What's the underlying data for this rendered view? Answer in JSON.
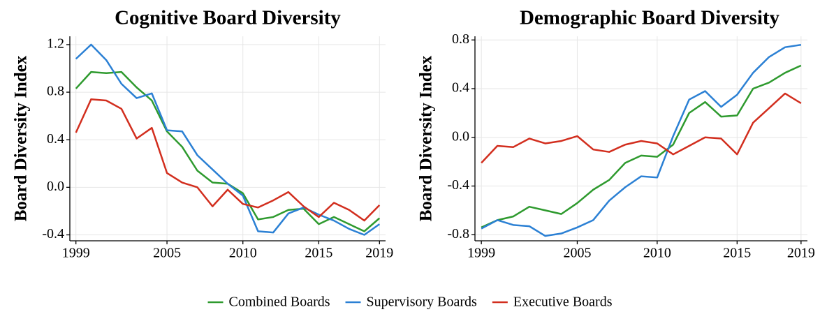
{
  "chart_data": [
    {
      "type": "line",
      "title": "Cognitive Board Diversity",
      "ylabel": "Board Diversity Index",
      "x": [
        1999,
        2000,
        2001,
        2002,
        2003,
        2004,
        2005,
        2006,
        2007,
        2008,
        2009,
        2010,
        2011,
        2012,
        2013,
        2014,
        2015,
        2016,
        2017,
        2018,
        2019
      ],
      "series": [
        {
          "name": "Combined Boards",
          "color": "#2e9a2e",
          "values": [
            0.83,
            0.97,
            0.96,
            0.97,
            0.84,
            0.73,
            0.47,
            0.34,
            0.14,
            0.04,
            0.03,
            -0.05,
            -0.27,
            -0.25,
            -0.19,
            -0.18,
            -0.31,
            -0.25,
            -0.31,
            -0.37,
            -0.26
          ]
        },
        {
          "name": "Supervisory Boards",
          "color": "#2b80d4",
          "values": [
            1.08,
            1.2,
            1.07,
            0.87,
            0.75,
            0.79,
            0.48,
            0.47,
            0.27,
            0.15,
            0.03,
            -0.07,
            -0.37,
            -0.38,
            -0.22,
            -0.17,
            -0.23,
            -0.28,
            -0.35,
            -0.4,
            -0.31
          ]
        },
        {
          "name": "Executive Boards",
          "color": "#d22e1e",
          "values": [
            0.46,
            0.74,
            0.73,
            0.66,
            0.41,
            0.5,
            0.12,
            0.04,
            0.0,
            -0.16,
            -0.02,
            -0.14,
            -0.17,
            -0.11,
            -0.04,
            -0.16,
            -0.25,
            -0.13,
            -0.19,
            -0.28,
            -0.15
          ]
        }
      ],
      "xlim": [
        1998.6,
        2019.4
      ],
      "xticks": [
        1999,
        2005,
        2010,
        2015,
        2019
      ],
      "ylim": [
        -0.45,
        1.27
      ],
      "yticks": [
        -0.4,
        {
          "value": 0,
          "label": "0.0"
        },
        0.4,
        0.8,
        1.2
      ],
      "grid": true
    },
    {
      "type": "line",
      "title": "Demographic Board Diversity",
      "ylabel": "Board Diversity Index",
      "x": [
        1999,
        2000,
        2001,
        2002,
        2003,
        2004,
        2005,
        2006,
        2007,
        2008,
        2009,
        2010,
        2011,
        2012,
        2013,
        2014,
        2015,
        2016,
        2017,
        2018,
        2019
      ],
      "series": [
        {
          "color": "#2e9a2e",
          "values": [
            -0.74,
            -0.68,
            -0.65,
            -0.57,
            -0.6,
            -0.63,
            -0.54,
            -0.43,
            -0.35,
            -0.21,
            -0.15,
            -0.16,
            -0.06,
            0.2,
            0.29,
            0.17,
            0.18,
            0.4,
            0.45,
            0.53,
            0.59
          ]
        },
        {
          "color": "#2b80d4",
          "values": [
            -0.75,
            -0.68,
            -0.72,
            -0.73,
            -0.81,
            -0.79,
            -0.74,
            -0.68,
            -0.52,
            -0.41,
            -0.32,
            -0.33,
            0.01,
            0.31,
            0.38,
            0.25,
            0.35,
            0.53,
            0.66,
            0.74,
            0.76
          ]
        },
        {
          "color": "#d22e1e",
          "values": [
            -0.21,
            -0.07,
            -0.08,
            -0.01,
            -0.05,
            -0.03,
            0.01,
            -0.1,
            -0.12,
            -0.06,
            -0.03,
            -0.05,
            -0.14,
            -0.07,
            0.0,
            -0.01,
            -0.14,
            0.12,
            0.24,
            0.36,
            0.28
          ]
        }
      ],
      "xlim": [
        1998.6,
        2019.4
      ],
      "xticks": [
        1999,
        2005,
        2010,
        2015,
        2019
      ],
      "ylim": [
        -0.85,
        0.83
      ],
      "yticks": [
        -0.8,
        -0.4,
        {
          "value": 0,
          "label": "0.0"
        },
        0.4,
        0.8
      ],
      "grid": true
    }
  ]
}
